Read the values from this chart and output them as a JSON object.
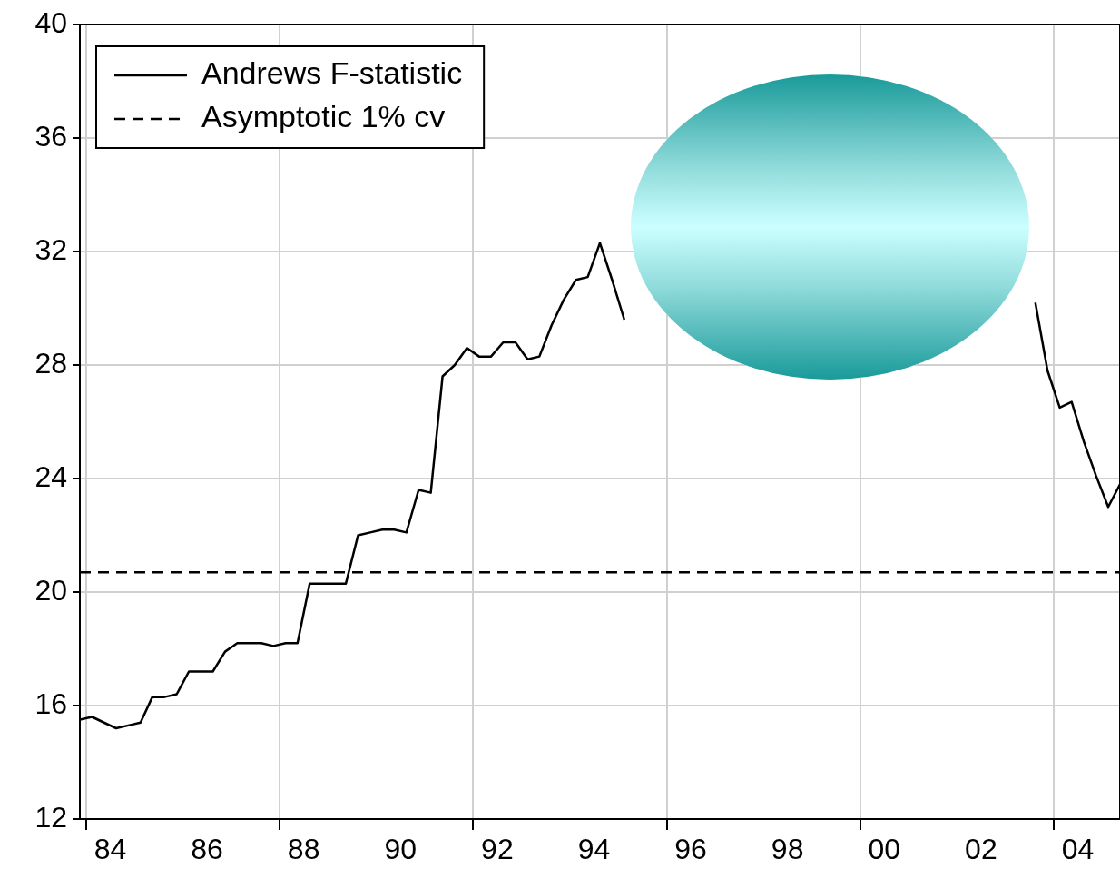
{
  "chart_data": {
    "type": "line",
    "x": [
      "1983-11-15",
      "1984-02-15",
      "1984-05-15",
      "1984-08-15",
      "1984-11-15",
      "1985-02-15",
      "1985-05-15",
      "1985-08-15",
      "1985-11-15",
      "1986-02-15",
      "1986-05-15",
      "1986-08-15",
      "1986-11-15",
      "1987-02-15",
      "1987-05-15",
      "1987-08-15",
      "1987-11-15",
      "1988-02-15",
      "1988-05-15",
      "1988-08-15",
      "1988-11-15",
      "1989-02-15",
      "1989-05-15",
      "1989-08-15",
      "1989-11-15",
      "1990-02-15",
      "1990-05-15",
      "1990-08-15",
      "1990-11-15",
      "1991-02-15",
      "1991-05-15",
      "1991-08-15",
      "1991-11-15",
      "1992-02-15",
      "1992-05-15",
      "1992-08-15",
      "1992-11-15",
      "1993-02-15",
      "1993-05-15",
      "1993-08-15",
      "1993-11-15",
      "1994-02-15",
      "1994-05-15",
      "1994-08-15",
      "1994-11-15",
      "1995-02-15",
      "1995-05-15",
      "1995-08-15",
      "1995-11-15",
      "1996-02-15",
      "1996-05-15",
      "1996-08-15",
      "1996-11-15",
      "1997-02-15",
      "1997-05-15",
      "1997-08-15",
      "1997-11-15",
      "1998-02-15",
      "1998-05-15",
      "1998-08-15",
      "1998-11-15",
      "1999-02-15",
      "1999-05-15",
      "1999-08-15",
      "1999-11-15",
      "2000-02-15",
      "2000-05-15",
      "2000-08-15",
      "2000-11-15",
      "2001-02-15",
      "2001-05-15",
      "2001-08-15",
      "2001-11-15",
      "2002-02-15",
      "2002-05-15",
      "2002-08-15",
      "2002-11-15",
      "2003-02-15",
      "2003-05-15",
      "2003-08-15",
      "2003-11-15",
      "2004-02-15",
      "2004-05-15",
      "2004-08-15",
      "2004-11-15",
      "2005-02-15",
      "2005-05-15"
    ],
    "series": [
      {
        "name": "Andrews F-statistic",
        "color": "#000000",
        "values": [
          15.5,
          15.6,
          15.4,
          15.2,
          15.3,
          15.4,
          16.3,
          16.3,
          16.4,
          17.2,
          17.2,
          17.2,
          17.9,
          18.2,
          18.2,
          18.2,
          18.1,
          18.2,
          18.2,
          20.3,
          20.3,
          20.3,
          20.3,
          22.0,
          22.1,
          22.2,
          22.2,
          22.1,
          23.6,
          23.5,
          27.6,
          28.0,
          28.6,
          28.3,
          28.3,
          28.8,
          28.8,
          28.2,
          28.3,
          29.4,
          30.3,
          31.0,
          31.1,
          32.3,
          31.0,
          29.6,
          null,
          null,
          null,
          null,
          null,
          null,
          null,
          null,
          null,
          null,
          null,
          null,
          null,
          null,
          null,
          null,
          null,
          null,
          null,
          null,
          null,
          null,
          null,
          null,
          null,
          null,
          null,
          null,
          null,
          null,
          null,
          null,
          null,
          30.2,
          27.8,
          26.5,
          26.7,
          25.3,
          24.1,
          23.0,
          23.8
        ]
      }
    ],
    "xlim": [
      "1983-11-15",
      "2005-05-15"
    ],
    "xticks": [
      {
        "value": "1984-01-01",
        "label": null
      },
      {
        "value": "1984-07-01",
        "label": "84"
      },
      {
        "value": "1986-07-01",
        "label": "86"
      },
      {
        "value": "1988-01-01",
        "label": null
      },
      {
        "value": "1988-07-01",
        "label": "88"
      },
      {
        "value": "1990-07-01",
        "label": "90"
      },
      {
        "value": "1992-01-01",
        "label": null
      },
      {
        "value": "1992-07-01",
        "label": "92"
      },
      {
        "value": "1994-07-01",
        "label": "94"
      },
      {
        "value": "1996-01-01",
        "label": null
      },
      {
        "value": "1996-07-01",
        "label": "96"
      },
      {
        "value": "1998-07-01",
        "label": "98"
      },
      {
        "value": "2000-01-01",
        "label": null
      },
      {
        "value": "2000-07-01",
        "label": "00"
      },
      {
        "value": "2002-07-01",
        "label": "02"
      },
      {
        "value": "2004-01-01",
        "label": null
      },
      {
        "value": "2004-07-01",
        "label": "04"
      }
    ],
    "ylim": [
      12,
      40
    ],
    "yticks": [
      12,
      16,
      20,
      24,
      28,
      32,
      36,
      40
    ],
    "ref_lines": [
      {
        "axis": "y",
        "value": 20.7,
        "label": "Asymptotic 1% cv",
        "color": "#000000",
        "line_style": "dashed"
      }
    ],
    "grid": true,
    "legend": "top left",
    "line_style": "solid",
    "marker": "none"
  }
}
